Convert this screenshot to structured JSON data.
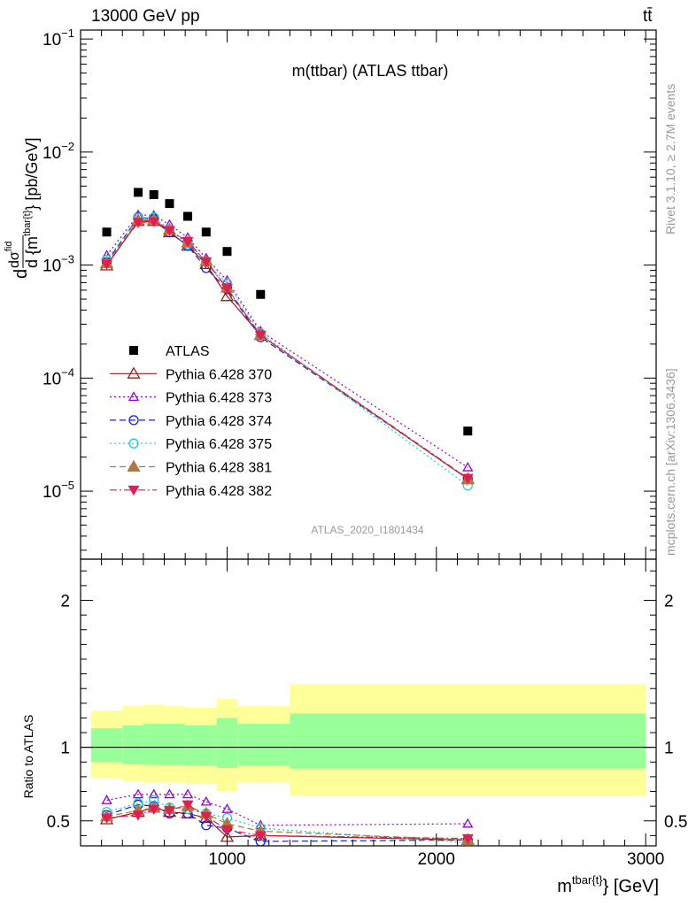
{
  "header": {
    "left_label": "13000 GeV pp",
    "right_label": "tt̄",
    "side_rivet": "Rivet 3.1.10, ≥ 2.7M events",
    "side_mcplots": "mcplots.cern.ch [arXiv:1306.3436]",
    "analysis_id": "ATLAS_2020_I1801434"
  },
  "chart_data": [
    {
      "type": "scatter",
      "title": "m(ttbar) (ATLAS ttbar)",
      "ylabel": "d dσ^fid / d {m^tbar{t}} [pb/GeV]",
      "ylabel_parts": [
        "d",
        "dσ",
        "fid",
        "d {m",
        "tbar{t}",
        "} [pb/GeV]"
      ],
      "xlabel": "m^tbar{t} [GeV]",
      "xlabel_parts": [
        "m",
        "tbar{t}",
        "} [GeV]"
      ],
      "y_scale": "log",
      "ylim": [
        2.5e-06,
        0.12
      ],
      "xlim": [
        300,
        3050
      ],
      "y_ticks": [
        {
          "value": 1e-05,
          "label_base": "10",
          "label_exp": "−5"
        },
        {
          "value": 0.0001,
          "label_base": "10",
          "label_exp": "−4"
        },
        {
          "value": 0.001,
          "label_base": "10",
          "label_exp": "−3"
        },
        {
          "value": 0.01,
          "label_base": "10",
          "label_exp": "−2"
        },
        {
          "value": 0.1,
          "label_base": "10",
          "label_exp": "−1"
        }
      ],
      "x": [
        425,
        575,
        650,
        725,
        812,
        900,
        1000,
        1160,
        2150
      ],
      "series": [
        {
          "name": "ATLAS",
          "color": "#000000",
          "marker": "square-filled",
          "line": "none",
          "values": [
            0.00196,
            0.0044,
            0.0042,
            0.0035,
            0.0027,
            0.00196,
            0.00132,
            0.00055,
            3.4e-05
          ]
        },
        {
          "name": "Pythia 6.428 370",
          "color": "#9b1b1b",
          "marker": "triangle-open",
          "line": "solid",
          "values": [
            0.00099,
            0.00245,
            0.00245,
            0.00195,
            0.00148,
            0.00102,
            0.00053,
            0.00024,
            1.28e-05
          ]
        },
        {
          "name": "Pythia 6.428 373",
          "color": "#9400d3",
          "marker": "triangle-open-small",
          "line": "dotted",
          "values": [
            0.00122,
            0.00278,
            0.00275,
            0.00228,
            0.00175,
            0.00115,
            0.00073,
            0.00026,
            1.62e-05
          ]
        },
        {
          "name": "Pythia 6.428 374",
          "color": "#1e1ed2",
          "marker": "circle-open",
          "line": "dashed",
          "values": [
            0.00106,
            0.00265,
            0.00255,
            0.00195,
            0.00148,
            0.00094,
            0.00061,
            0.00023,
            1.29e-05
          ]
        },
        {
          "name": "Pythia 6.428 375",
          "color": "#16d2c8",
          "marker": "circle-open",
          "line": "dotted",
          "values": [
            0.00111,
            0.00262,
            0.00265,
            0.00205,
            0.00153,
            0.00106,
            0.00069,
            0.00025,
            1.12e-05
          ]
        },
        {
          "name": "Pythia 6.428 381",
          "color": "#b07840",
          "marker": "triangle-filled",
          "line": "dashed",
          "values": [
            0.00104,
            0.0025,
            0.00252,
            0.00206,
            0.00158,
            0.00108,
            0.00063,
            0.00024,
            1.27e-05
          ]
        },
        {
          "name": "Pythia 6.428 382",
          "color": "#e01e50",
          "marker": "triangle-down-filled",
          "line": "dashdot",
          "values": [
            0.00102,
            0.00238,
            0.00243,
            0.00202,
            0.00162,
            0.00107,
            0.00062,
            0.00024,
            1.3e-05
          ]
        }
      ],
      "legend": "lower-left"
    },
    {
      "type": "scatter",
      "ylabel": "Ratio to ATLAS",
      "ylim": [
        0.33,
        2.28
      ],
      "xlim": [
        300,
        3050
      ],
      "y_ticks": [
        {
          "value": 0.5,
          "label": "0.5"
        },
        {
          "value": 1,
          "label": "1"
        },
        {
          "value": 2,
          "label": "2"
        }
      ],
      "x_ticks": [
        {
          "value": 1000,
          "label": "1000"
        },
        {
          "value": 2000,
          "label": "2000"
        },
        {
          "value": 3000,
          "label": "3000"
        }
      ],
      "reference_line": 1,
      "band_bins": [
        {
          "lo": 350,
          "hi": 500,
          "stat_lo": 0.9,
          "stat_hi": 1.13,
          "tot_lo": 0.79,
          "tot_hi": 1.25
        },
        {
          "lo": 500,
          "hi": 600,
          "stat_lo": 0.885,
          "stat_hi": 1.15,
          "tot_lo": 0.77,
          "tot_hi": 1.28
        },
        {
          "lo": 600,
          "hi": 700,
          "stat_lo": 0.88,
          "stat_hi": 1.16,
          "tot_lo": 0.76,
          "tot_hi": 1.29
        },
        {
          "lo": 700,
          "hi": 800,
          "stat_lo": 0.88,
          "stat_hi": 1.16,
          "tot_lo": 0.76,
          "tot_hi": 1.28
        },
        {
          "lo": 800,
          "hi": 950,
          "stat_lo": 0.875,
          "stat_hi": 1.15,
          "tot_lo": 0.75,
          "tot_hi": 1.27
        },
        {
          "lo": 950,
          "hi": 1050,
          "stat_lo": 0.86,
          "stat_hi": 1.2,
          "tot_lo": 0.7,
          "tot_hi": 1.33
        },
        {
          "lo": 1050,
          "hi": 1300,
          "stat_lo": 0.875,
          "stat_hi": 1.16,
          "tot_lo": 0.76,
          "tot_hi": 1.28
        },
        {
          "lo": 1300,
          "hi": 3000,
          "stat_lo": 0.855,
          "stat_hi": 1.23,
          "tot_lo": 0.67,
          "tot_hi": 1.43
        }
      ],
      "band_colors": {
        "stat": "#99ff99",
        "total": "#ffff99"
      },
      "series": [
        {
          "name": "Pythia 6.428 370",
          "values": [
            0.51,
            0.56,
            0.59,
            0.56,
            0.55,
            0.52,
            0.39,
            0.4,
            0.37
          ]
        },
        {
          "name": "Pythia 6.428 373",
          "values": [
            0.64,
            0.68,
            0.68,
            0.68,
            0.68,
            0.63,
            0.58,
            0.47,
            0.48
          ]
        },
        {
          "name": "Pythia 6.428 374",
          "values": [
            0.54,
            0.61,
            0.6,
            0.55,
            0.55,
            0.47,
            0.45,
            0.36,
            0.37
          ]
        },
        {
          "name": "Pythia 6.428 375",
          "values": [
            0.56,
            0.62,
            0.64,
            0.59,
            0.58,
            0.55,
            0.52,
            0.45,
            0.35
          ]
        },
        {
          "name": "Pythia 6.428 381",
          "values": [
            0.53,
            0.57,
            0.59,
            0.58,
            0.6,
            0.55,
            0.48,
            0.43,
            0.37
          ]
        },
        {
          "name": "Pythia 6.428 382",
          "values": [
            0.52,
            0.54,
            0.58,
            0.57,
            0.61,
            0.53,
            0.44,
            0.4,
            0.38
          ]
        }
      ]
    }
  ]
}
